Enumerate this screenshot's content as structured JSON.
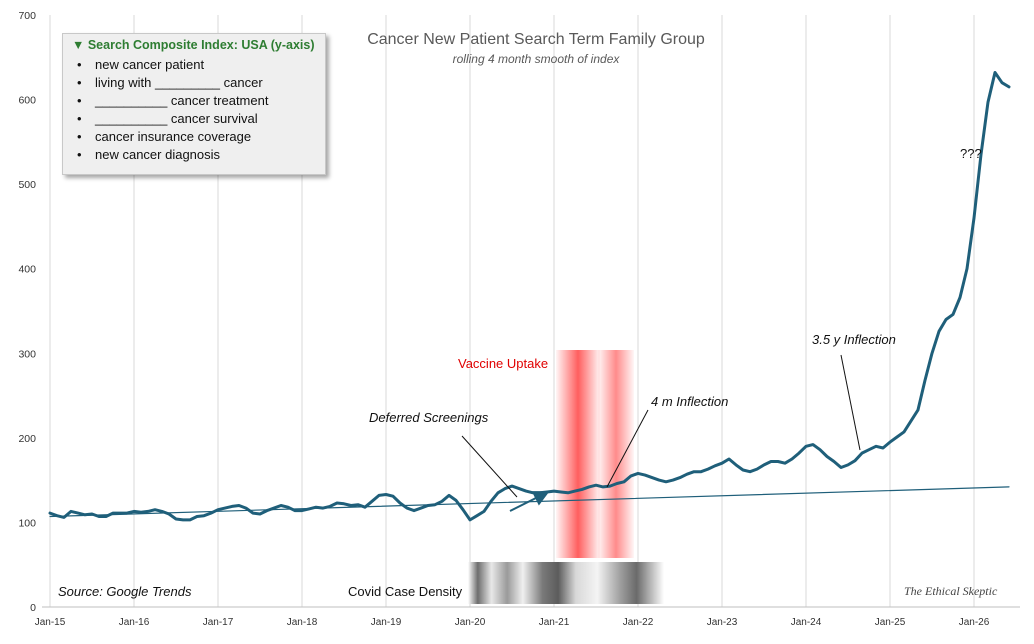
{
  "chart_data": {
    "type": "line",
    "title": "Cancer New Patient Search Term Family Group",
    "subtitle": "rolling 4 month smooth of index",
    "y_ticks": [
      "0",
      "100",
      "200",
      "300",
      "400",
      "500",
      "600",
      "700"
    ],
    "ylim": [
      0,
      700
    ],
    "x_ticks": [
      "Jan-15",
      "Jan-16",
      "Jan-17",
      "Jan-18",
      "Jan-19",
      "Jan-20",
      "Jan-21",
      "Jan-22",
      "Jan-23",
      "Jan-24",
      "Jan-25",
      "Jan-26"
    ],
    "x_start": "Jan-15",
    "x_unit": "months",
    "grid": "vertical",
    "legend": {
      "title": "▼ Search Composite Index: USA (y-axis)",
      "items": [
        "new cancer patient",
        "living with _________ cancer",
        "__________  cancer treatment",
        "__________  cancer survival",
        "cancer insurance coverage",
        "new cancer diagnosis"
      ],
      "placement": "top-left"
    },
    "series": [
      {
        "color": "#1f5f7a",
        "x": [
          0,
          1,
          2,
          3,
          4,
          5,
          6,
          7,
          8,
          9,
          10,
          11,
          12,
          13,
          14,
          15,
          16,
          17,
          18,
          19,
          20,
          21,
          22,
          23,
          24,
          25,
          26,
          27,
          28,
          29,
          30,
          31,
          32,
          33,
          34,
          35,
          36,
          37,
          38,
          39,
          40,
          41,
          42,
          43,
          44,
          45,
          46,
          47,
          48,
          49,
          50,
          51,
          52,
          53,
          54,
          55,
          56,
          57,
          58,
          59,
          60,
          61,
          62,
          63,
          64,
          65,
          66,
          67,
          68,
          69,
          70,
          71,
          72,
          73,
          74,
          75,
          76,
          77,
          78,
          79,
          80,
          81,
          82,
          83,
          84,
          85,
          86,
          87,
          88,
          89,
          90,
          91,
          92,
          93,
          94,
          95,
          96,
          97,
          98,
          99,
          100,
          101,
          102,
          103,
          104,
          105,
          106,
          107,
          108,
          109,
          110,
          111,
          112,
          113,
          114,
          115,
          116,
          117,
          118,
          119,
          120,
          121,
          122,
          123,
          124,
          125,
          126,
          127,
          128,
          129,
          130,
          131,
          132,
          133,
          134,
          135,
          136,
          137
        ],
        "values": [
          111,
          108,
          106,
          113,
          111,
          109,
          110,
          107,
          107,
          111,
          111,
          111,
          113,
          112,
          113,
          115,
          113,
          110,
          104,
          103,
          103,
          107,
          108,
          111,
          115,
          117,
          119,
          120,
          117,
          111,
          110,
          114,
          117,
          120,
          118,
          114,
          114,
          116,
          118,
          117,
          119,
          123,
          122,
          120,
          121,
          118,
          125,
          132,
          133,
          131,
          123,
          117,
          114,
          117,
          120,
          121,
          125,
          132,
          126,
          115,
          103,
          108,
          113,
          125,
          135,
          140,
          143,
          140,
          137,
          135,
          135,
          136,
          137,
          136,
          135,
          137,
          139,
          142,
          144,
          142,
          143,
          146,
          148,
          155,
          158,
          156,
          153,
          150,
          148,
          150,
          153,
          157,
          160,
          160,
          163,
          167,
          170,
          175,
          168,
          162,
          160,
          163,
          168,
          172,
          172,
          170,
          175,
          182,
          190,
          192,
          186,
          178,
          172,
          165,
          168,
          173,
          182,
          186,
          190,
          188,
          195,
          201,
          207,
          220,
          233,
          268,
          300,
          326,
          340,
          346,
          366,
          400,
          460,
          535,
          597,
          632,
          620,
          615
        ]
      },
      {
        "name": "trend",
        "color": "#1f5f7a",
        "x": [
          0,
          137
        ],
        "values": [
          107,
          142
        ]
      }
    ],
    "annotations": {
      "deferred": "Deferred Screenings",
      "four_m": "4 m Inflection",
      "three_five_y": "3.5 y Inflection",
      "question": "???",
      "vaccine": "Vaccine Uptake",
      "covid": "Covid Case Density"
    },
    "source": "Source: Google Trends",
    "watermark": "The Ethical Skeptic"
  }
}
